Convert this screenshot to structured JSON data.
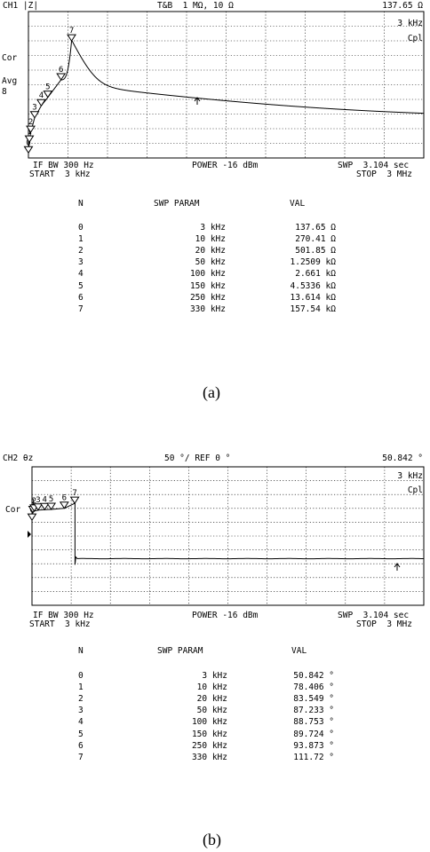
{
  "panels": [
    {
      "channel": "CH1 |Z|",
      "settings": "T&B  1 MΩ, 10 Ω",
      "marker_readout": "137.65 Ω",
      "marker_freq": "3 kHz",
      "cpl": "Cpl",
      "left_labels": [
        "Cor",
        "Avg",
        "8"
      ],
      "if_bw": "IF BW 300 Hz",
      "start": "START  3 kHz",
      "power": "POWER -16 dBm",
      "swp": "SWP  3.104 sec",
      "stop": "STOP  3 MHz",
      "table_headers": [
        "N",
        "SWP PARAM",
        "VAL"
      ],
      "rows": [
        {
          "n": "0",
          "param": "3 kHz",
          "val": "137.65 Ω"
        },
        {
          "n": "1",
          "param": "10 kHz",
          "val": "270.41 Ω"
        },
        {
          "n": "2",
          "param": "20 kHz",
          "val": "501.85 Ω"
        },
        {
          "n": "3",
          "param": "50 kHz",
          "val": "1.2509 kΩ"
        },
        {
          "n": "4",
          "param": "100 kHz",
          "val": "2.661 kΩ"
        },
        {
          "n": "5",
          "param": "150 kHz",
          "val": "4.5336 kΩ"
        },
        {
          "n": "6",
          "param": "250 kHz",
          "val": "13.614 kΩ"
        },
        {
          "n": "7",
          "param": "330 kHz",
          "val": "157.54 kΩ"
        }
      ],
      "caption": "(a)"
    },
    {
      "channel": "CH2 θz",
      "settings": "50 °/ REF 0 °",
      "marker_readout": "50.842 °",
      "marker_freq": "3 kHz",
      "cpl": "Cpl",
      "left_labels": [
        "Cor"
      ],
      "if_bw": "IF BW 300 Hz",
      "start": "START  3 kHz",
      "power": "POWER -16 dBm",
      "swp": "SWP  3.104 sec",
      "stop": "STOP  3 MHz",
      "table_headers": [
        "N",
        "SWP PARAM",
        "VAL"
      ],
      "rows": [
        {
          "n": "0",
          "param": "3 kHz",
          "val": "50.842 °"
        },
        {
          "n": "1",
          "param": "10 kHz",
          "val": "78.406 °"
        },
        {
          "n": "2",
          "param": "20 kHz",
          "val": "83.549 °"
        },
        {
          "n": "3",
          "param": "50 kHz",
          "val": "87.233 °"
        },
        {
          "n": "4",
          "param": "100 kHz",
          "val": "88.753 °"
        },
        {
          "n": "5",
          "param": "150 kHz",
          "val": "89.724 °"
        },
        {
          "n": "6",
          "param": "250 kHz",
          "val": "93.873 °"
        },
        {
          "n": "7",
          "param": "330 kHz",
          "val": "111.72 °"
        }
      ],
      "caption": "(b)"
    }
  ],
  "chart_data": [
    {
      "type": "line",
      "quantity": "|Z|",
      "x_scale": "linear",
      "xlim": [
        "3 kHz",
        "3 MHz"
      ],
      "grid": true,
      "markers": [
        {
          "n": 0,
          "freq_khz": 3,
          "value": 137.65,
          "unit": "Ω"
        },
        {
          "n": 1,
          "freq_khz": 10,
          "value": 270.41,
          "unit": "Ω"
        },
        {
          "n": 2,
          "freq_khz": 20,
          "value": 501.85,
          "unit": "Ω"
        },
        {
          "n": 3,
          "freq_khz": 50,
          "value": 1250.9,
          "unit": "Ω"
        },
        {
          "n": 4,
          "freq_khz": 100,
          "value": 2661,
          "unit": "Ω"
        },
        {
          "n": 5,
          "freq_khz": 150,
          "value": 4533.6,
          "unit": "Ω"
        },
        {
          "n": 6,
          "freq_khz": 250,
          "value": 13614,
          "unit": "Ω"
        },
        {
          "n": 7,
          "freq_khz": 330,
          "value": 157540,
          "unit": "Ω"
        }
      ]
    },
    {
      "type": "line",
      "quantity": "θz",
      "x_scale": "linear",
      "xlim": [
        "3 kHz",
        "3 MHz"
      ],
      "y_scale": "50 °/div",
      "y_ref": "0 °",
      "grid": true,
      "markers": [
        {
          "n": 0,
          "freq_khz": 3,
          "value": 50.842,
          "unit": "°"
        },
        {
          "n": 1,
          "freq_khz": 10,
          "value": 78.406,
          "unit": "°"
        },
        {
          "n": 2,
          "freq_khz": 20,
          "value": 83.549,
          "unit": "°"
        },
        {
          "n": 3,
          "freq_khz": 50,
          "value": 87.233,
          "unit": "°"
        },
        {
          "n": 4,
          "freq_khz": 100,
          "value": 88.753,
          "unit": "°"
        },
        {
          "n": 5,
          "freq_khz": 150,
          "value": 89.724,
          "unit": "°"
        },
        {
          "n": 6,
          "freq_khz": 250,
          "value": 93.873,
          "unit": "°"
        },
        {
          "n": 7,
          "freq_khz": 330,
          "value": 111.72,
          "unit": "°"
        }
      ]
    }
  ]
}
